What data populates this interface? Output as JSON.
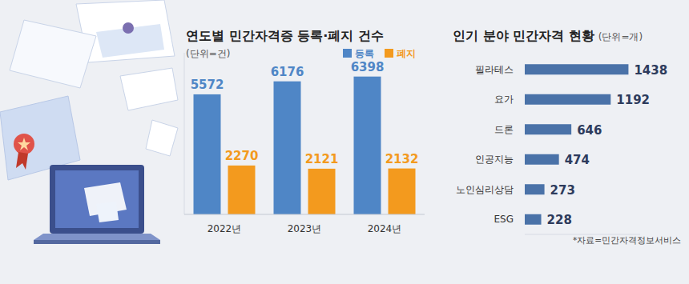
{
  "chart_data": [
    {
      "type": "bar",
      "title": "연도별 민간자격증 등록·폐지 건수",
      "subtitle": "(단위=건)",
      "categories": [
        "2022년",
        "2023년",
        "2024년"
      ],
      "series": [
        {
          "name": "등록",
          "color": "#4f86c6",
          "values": [
            5572,
            6176,
            6398
          ]
        },
        {
          "name": "폐지",
          "color": "#f39a1e",
          "values": [
            2270,
            2121,
            2132
          ]
        }
      ],
      "ylim": [
        0,
        7500
      ],
      "data_labels": true,
      "tick_labels": "x",
      "legend": "top-right"
    },
    {
      "type": "bar",
      "orientation": "horizontal",
      "title": "인기 분야 민간자격 현황",
      "subtitle": "(단위=개)",
      "categories": [
        "필라테스",
        "요가",
        "드론",
        "인공지능",
        "노인심리상담",
        "ESG"
      ],
      "values": [
        1438,
        1192,
        646,
        474,
        273,
        228
      ],
      "color": "#4a72a8",
      "xlim": [
        0,
        1600
      ],
      "data_labels": true,
      "tick_labels": "y",
      "source": "*자료=민간자격정보서비스"
    }
  ]
}
